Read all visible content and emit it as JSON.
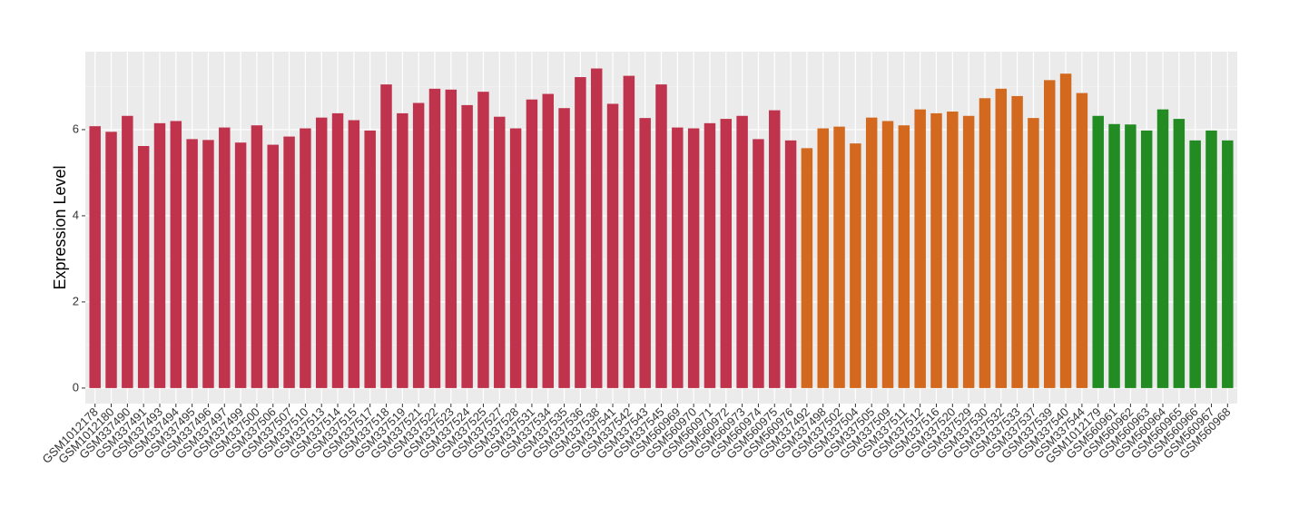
{
  "chart_data": {
    "type": "bar",
    "y_label": "Expression Level",
    "categories": [
      "GSM1012178",
      "GSM1012180",
      "GSM337490",
      "GSM337491",
      "GSM337493",
      "GSM337494",
      "GSM337495",
      "GSM337496",
      "GSM337497",
      "GSM337499",
      "GSM337500",
      "GSM337506",
      "GSM337507",
      "GSM337510",
      "GSM337513",
      "GSM337514",
      "GSM337515",
      "GSM337517",
      "GSM337518",
      "GSM337519",
      "GSM337521",
      "GSM337522",
      "GSM337523",
      "GSM337524",
      "GSM337525",
      "GSM337527",
      "GSM337528",
      "GSM337531",
      "GSM337534",
      "GSM337535",
      "GSM337536",
      "GSM337538",
      "GSM337541",
      "GSM337542",
      "GSM337543",
      "GSM337545",
      "GSM560969",
      "GSM560970",
      "GSM560971",
      "GSM560972",
      "GSM560973",
      "GSM560974",
      "GSM560975",
      "GSM560976",
      "GSM337492",
      "GSM337498",
      "GSM337502",
      "GSM337504",
      "GSM337505",
      "GSM337509",
      "GSM337511",
      "GSM337512",
      "GSM337516",
      "GSM337520",
      "GSM337529",
      "GSM337530",
      "GSM337532",
      "GSM337533",
      "GSM337537",
      "GSM337539",
      "GSM337540",
      "GSM337544",
      "GSM1012179",
      "GSM560961",
      "GSM560962",
      "GSM560963",
      "GSM560964",
      "GSM560965",
      "GSM560966",
      "GSM560967",
      "GSM560968"
    ],
    "values": [
      6.08,
      5.95,
      6.32,
      5.62,
      6.15,
      6.2,
      5.78,
      5.76,
      6.05,
      5.7,
      6.1,
      5.65,
      5.84,
      6.03,
      6.28,
      6.38,
      6.22,
      5.98,
      7.05,
      6.38,
      6.62,
      6.95,
      6.93,
      6.57,
      6.88,
      6.3,
      6.03,
      6.7,
      6.83,
      6.5,
      7.22,
      7.42,
      6.6,
      7.25,
      6.27,
      7.05,
      6.05,
      6.03,
      6.15,
      6.25,
      6.32,
      5.78,
      6.45,
      5.75,
      5.57,
      6.03,
      6.07,
      5.68,
      6.28,
      6.2,
      6.1,
      6.47,
      6.38,
      6.42,
      6.32,
      6.73,
      6.95,
      6.78,
      6.27,
      7.15,
      7.3,
      6.85,
      6.32,
      6.13,
      6.12,
      5.98,
      6.47,
      6.25,
      5.75,
      5.98,
      5.75
    ],
    "colors": [
      "#c0334d",
      "#c0334d",
      "#c0334d",
      "#c0334d",
      "#c0334d",
      "#c0334d",
      "#c0334d",
      "#c0334d",
      "#c0334d",
      "#c0334d",
      "#c0334d",
      "#c0334d",
      "#c0334d",
      "#c0334d",
      "#c0334d",
      "#c0334d",
      "#c0334d",
      "#c0334d",
      "#c0334d",
      "#c0334d",
      "#c0334d",
      "#c0334d",
      "#c0334d",
      "#c0334d",
      "#c0334d",
      "#c0334d",
      "#c0334d",
      "#c0334d",
      "#c0334d",
      "#c0334d",
      "#c0334d",
      "#c0334d",
      "#c0334d",
      "#c0334d",
      "#c0334d",
      "#c0334d",
      "#c0334d",
      "#c0334d",
      "#c0334d",
      "#c0334d",
      "#c0334d",
      "#c0334d",
      "#c0334d",
      "#c0334d",
      "#d2691e",
      "#d2691e",
      "#d2691e",
      "#d2691e",
      "#d2691e",
      "#d2691e",
      "#d2691e",
      "#d2691e",
      "#d2691e",
      "#d2691e",
      "#d2691e",
      "#d2691e",
      "#d2691e",
      "#d2691e",
      "#d2691e",
      "#d2691e",
      "#d2691e",
      "#d2691e",
      "#228b22",
      "#228b22",
      "#228b22",
      "#228b22",
      "#228b22",
      "#228b22",
      "#228b22",
      "#228b22",
      "#228b22"
    ],
    "ylim": [
      -0.36,
      7.81
    ],
    "yticks": [
      0,
      2,
      4,
      6
    ],
    "yminorticks": [
      1,
      3,
      5,
      7
    ],
    "grid": true
  }
}
